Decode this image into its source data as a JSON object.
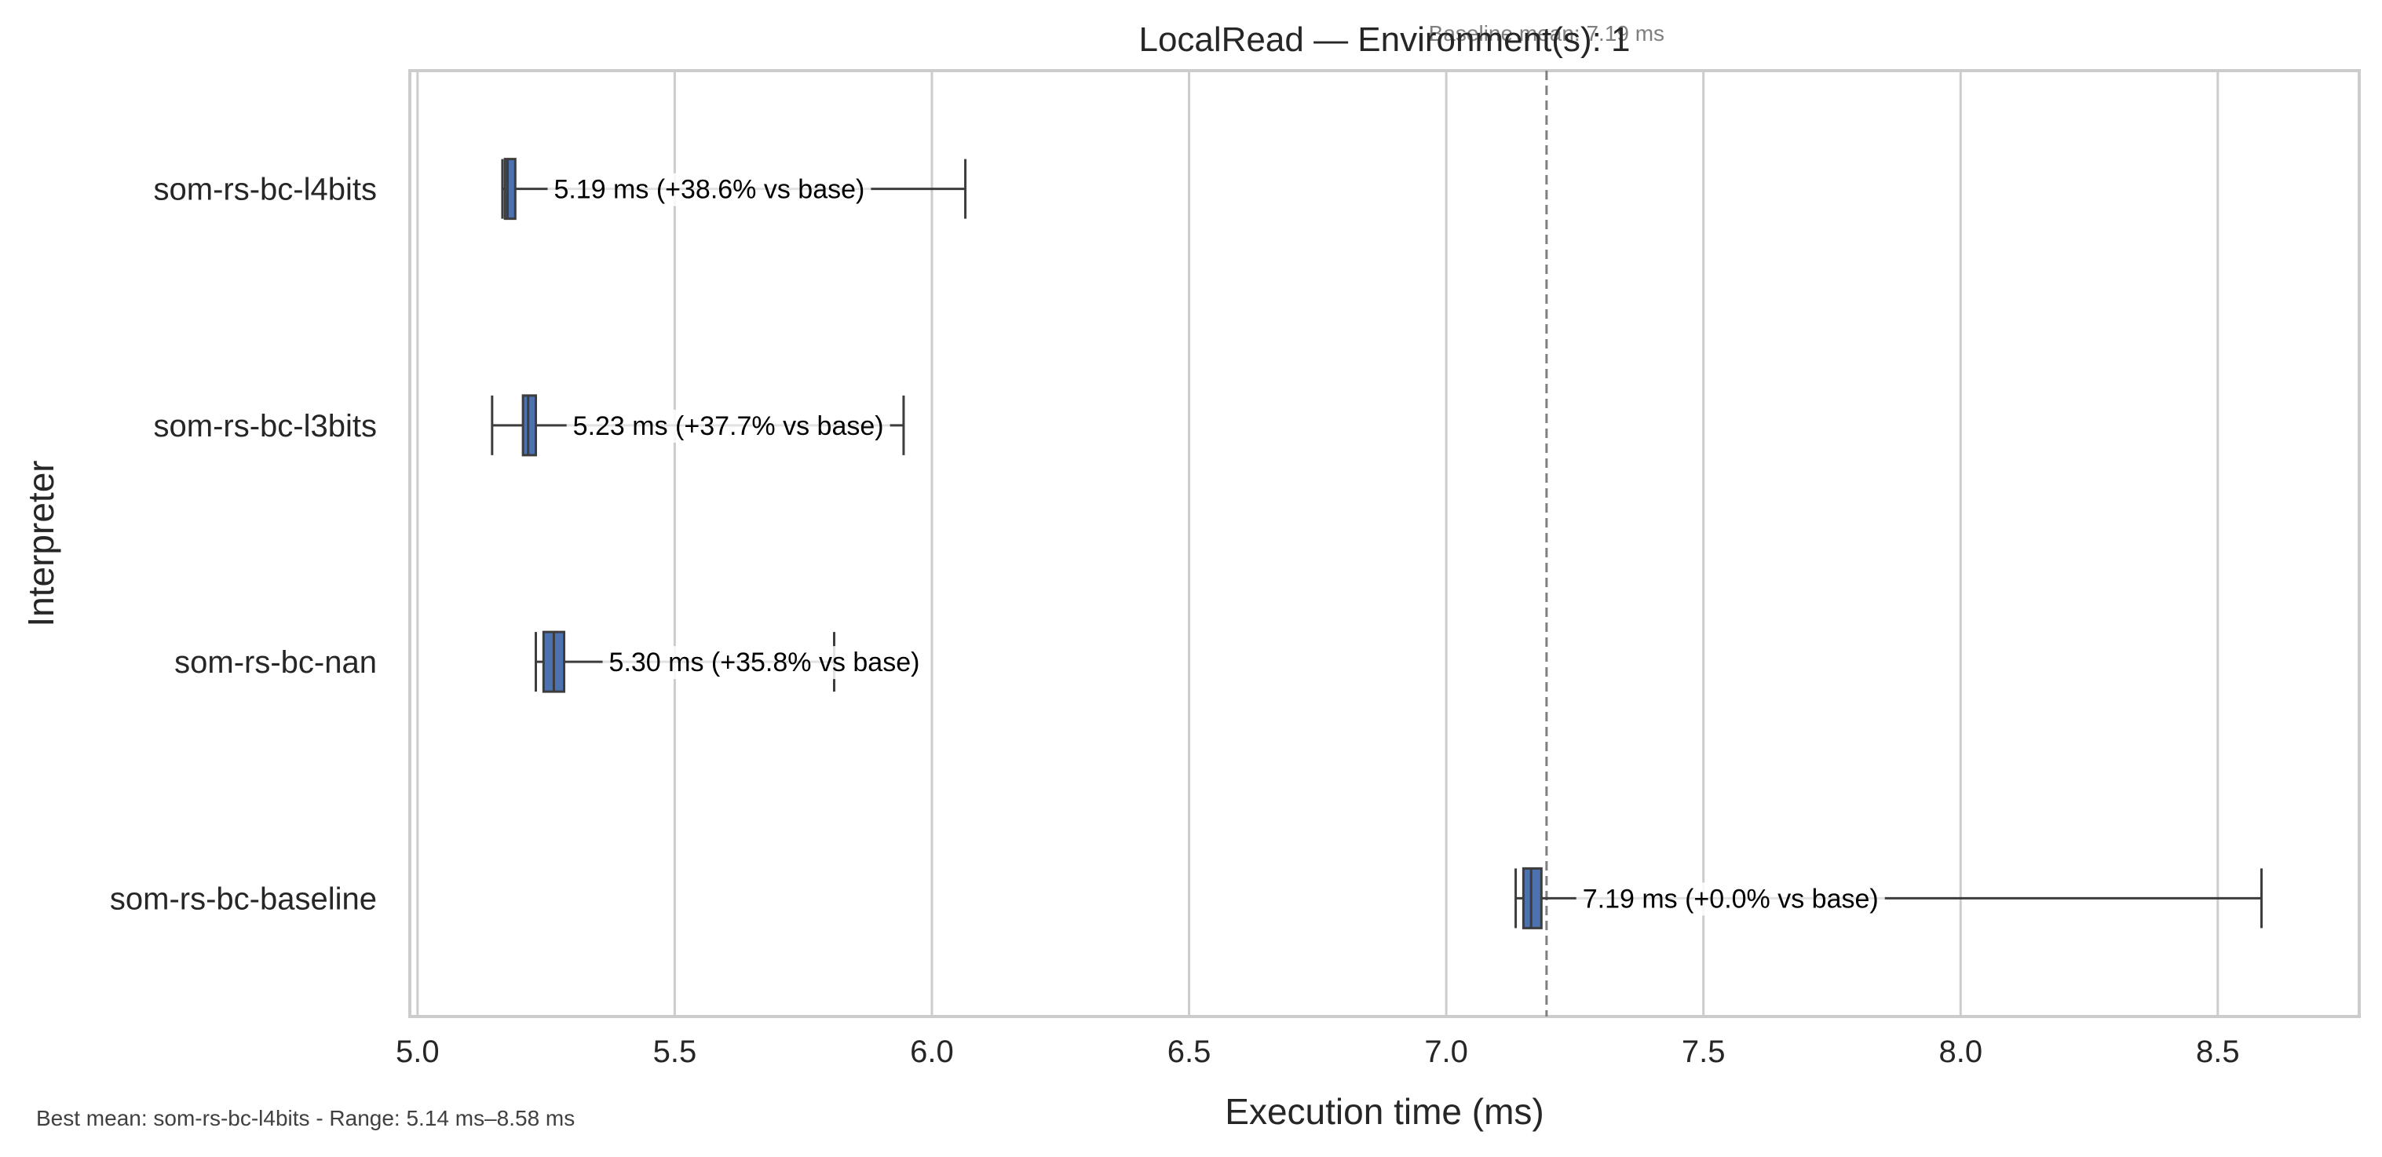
{
  "chart_data": {
    "type": "boxplot",
    "orientation": "horizontal",
    "title": "LocalRead — Environment(s): 1",
    "xlabel": "Execution time (ms)",
    "ylabel": "Interpreter",
    "xlim": [
      4.985,
      8.775
    ],
    "xticks": [
      "5.0",
      "5.5",
      "6.0",
      "6.5",
      "7.0",
      "7.5",
      "8.0",
      "8.5"
    ],
    "xtick_values": [
      5.0,
      5.5,
      6.0,
      6.5,
      7.0,
      7.5,
      8.0,
      8.5
    ],
    "grid": true,
    "box_color": "#4c72b0",
    "baseline": {
      "value": 7.195,
      "label": "Baseline mean: 7.19 ms",
      "line_color": "#808080"
    },
    "categories": [
      "som-rs-bc-l4bits",
      "som-rs-bc-l3bits",
      "som-rs-bc-nan",
      "som-rs-bc-baseline"
    ],
    "boxes": [
      {
        "name": "som-rs-bc-l4bits",
        "whisker_low": 5.165,
        "q1": 5.17,
        "median": 5.175,
        "q3": 5.19,
        "whisker_high": 6.065,
        "annotation": "5.19 ms  (+38.6% vs base)",
        "annotation_x": 5.265
      },
      {
        "name": "som-rs-bc-l3bits",
        "whisker_low": 5.145,
        "q1": 5.205,
        "median": 5.215,
        "q3": 5.23,
        "whisker_high": 5.945,
        "annotation": "5.23 ms  (+37.7% vs base)",
        "annotation_x": 5.302
      },
      {
        "name": "som-rs-bc-nan",
        "whisker_low": 5.23,
        "q1": 5.245,
        "median": 5.265,
        "q3": 5.285,
        "whisker_high": 5.81,
        "annotation": "5.30 ms  (+35.8% vs base)",
        "annotation_x": 5.372
      },
      {
        "name": "som-rs-bc-baseline",
        "whisker_low": 7.135,
        "q1": 7.15,
        "median": 7.165,
        "q3": 7.185,
        "whisker_high": 8.585,
        "annotation": "7.19 ms  (+0.0% vs base)",
        "annotation_x": 7.265
      }
    ]
  },
  "footer": "Best mean: som-rs-bc-l4bits - Range: 5.14 ms–8.58 ms"
}
